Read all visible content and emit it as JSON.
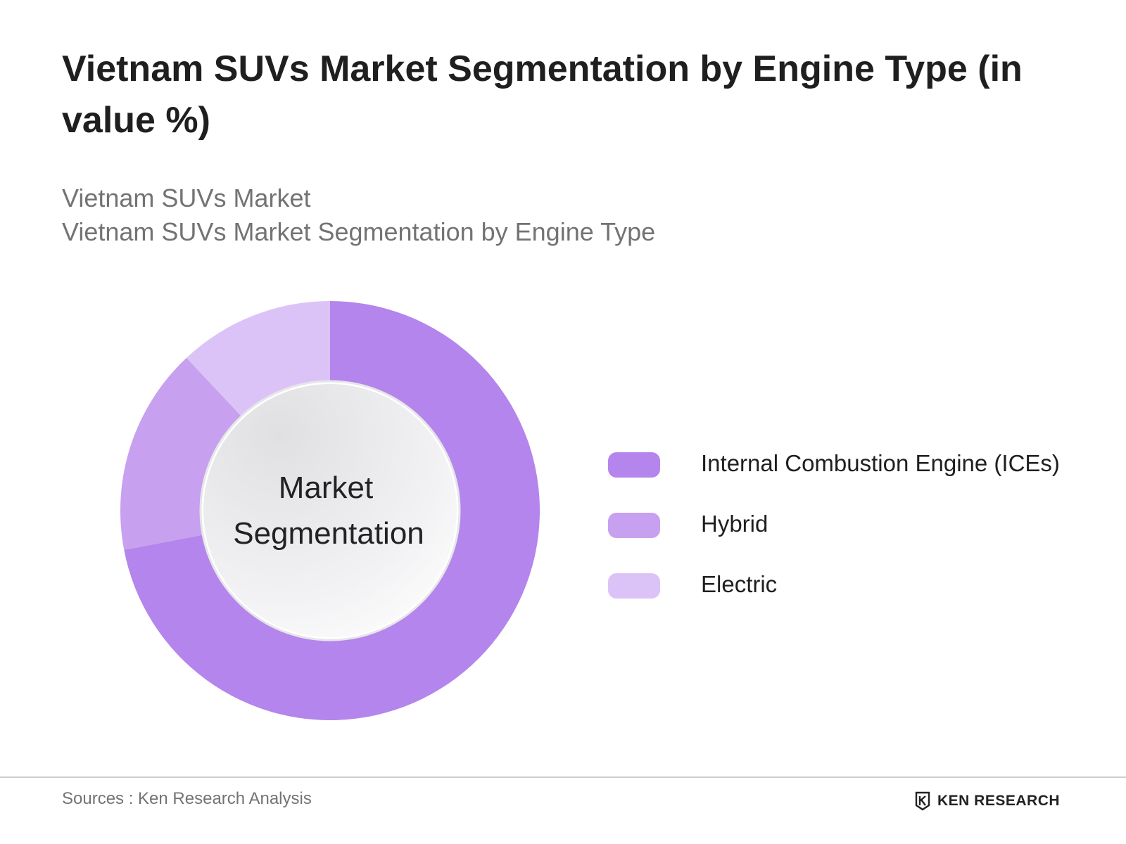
{
  "title": "Vietnam SUVs Market Segmentation by Engine Type (in value %)",
  "subtitle_1": "Vietnam SUVs Market",
  "subtitle_2": "Vietnam SUVs Market Segmentation by Engine Type",
  "center_label_1": "Market",
  "center_label_2": "Segmentation",
  "chart_data": {
    "type": "pie",
    "donut": true,
    "title": "Vietnam SUVs Market Segmentation by Engine Type (in value %)",
    "categories": [
      "Internal Combustion Engine (ICEs)",
      "Hybrid",
      "Electric"
    ],
    "values": [
      72,
      16,
      12
    ],
    "colors": [
      "#b485ec",
      "#c7a0ef",
      "#dcc3f7"
    ],
    "legend_position": "right",
    "start_angle": "top",
    "direction": "clockwise"
  },
  "legend": [
    {
      "label": "Internal Combustion Engine (ICEs)",
      "color": "#b485ec"
    },
    {
      "label": "Hybrid",
      "color": "#c7a0ef"
    },
    {
      "label": "Electric",
      "color": "#dcc3f7"
    }
  ],
  "footer": {
    "source": "Sources : Ken Research Analysis",
    "logo_text": "KEN RESEARCH"
  }
}
